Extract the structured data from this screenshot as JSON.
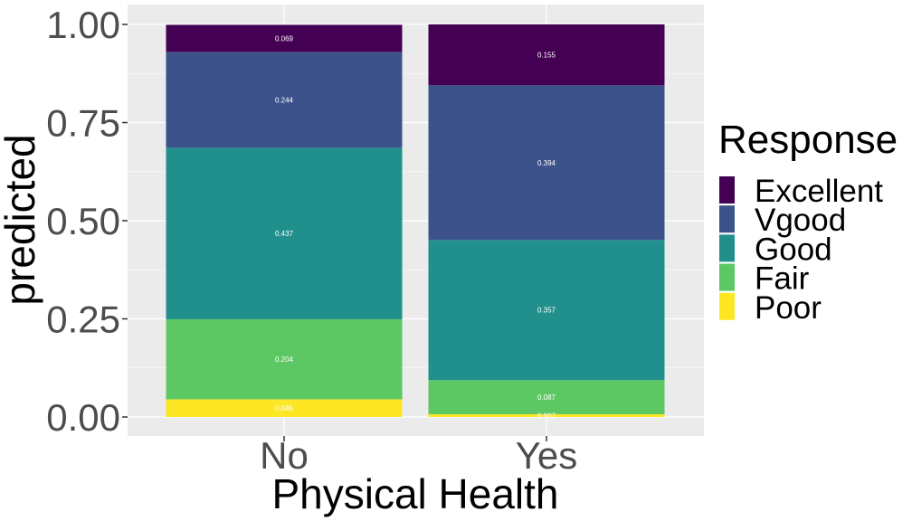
{
  "chart_data": {
    "type": "bar",
    "stacked": true,
    "categories": [
      "No",
      "Yes"
    ],
    "series": [
      {
        "name": "Poor",
        "color": "#FDE725",
        "values": [
          0.045,
          0.007
        ],
        "labels": [
          "0.045",
          "0.007"
        ]
      },
      {
        "name": "Fair",
        "color": "#5DC863",
        "values": [
          0.204,
          0.087
        ],
        "labels": [
          "0.204",
          "0.087"
        ]
      },
      {
        "name": "Good",
        "color": "#21908C",
        "values": [
          0.437,
          0.357
        ],
        "labels": [
          "0.437",
          "0.357"
        ]
      },
      {
        "name": "Vgood",
        "color": "#3B528B",
        "values": [
          0.244,
          0.394
        ],
        "labels": [
          "0.244",
          "0.394"
        ]
      },
      {
        "name": "Excellent",
        "color": "#440154",
        "values": [
          0.069,
          0.155
        ],
        "labels": [
          "0.069",
          "0.155"
        ]
      }
    ],
    "legend_order": [
      "Excellent",
      "Vgood",
      "Good",
      "Fair",
      "Poor"
    ],
    "title": "",
    "xlabel": "Physical Health",
    "ylabel": "predicted",
    "ylim": [
      0,
      1
    ],
    "yticks": [
      0,
      0.25,
      0.5,
      0.75,
      1
    ],
    "ytick_labels": [
      "0.00",
      "0.25",
      "0.50",
      "0.75",
      "1.00"
    ],
    "legend_title": "Response",
    "legend_position": "right",
    "grid": true,
    "panel_background": "#EBEBEB",
    "grid_color": "#FFFFFF"
  }
}
